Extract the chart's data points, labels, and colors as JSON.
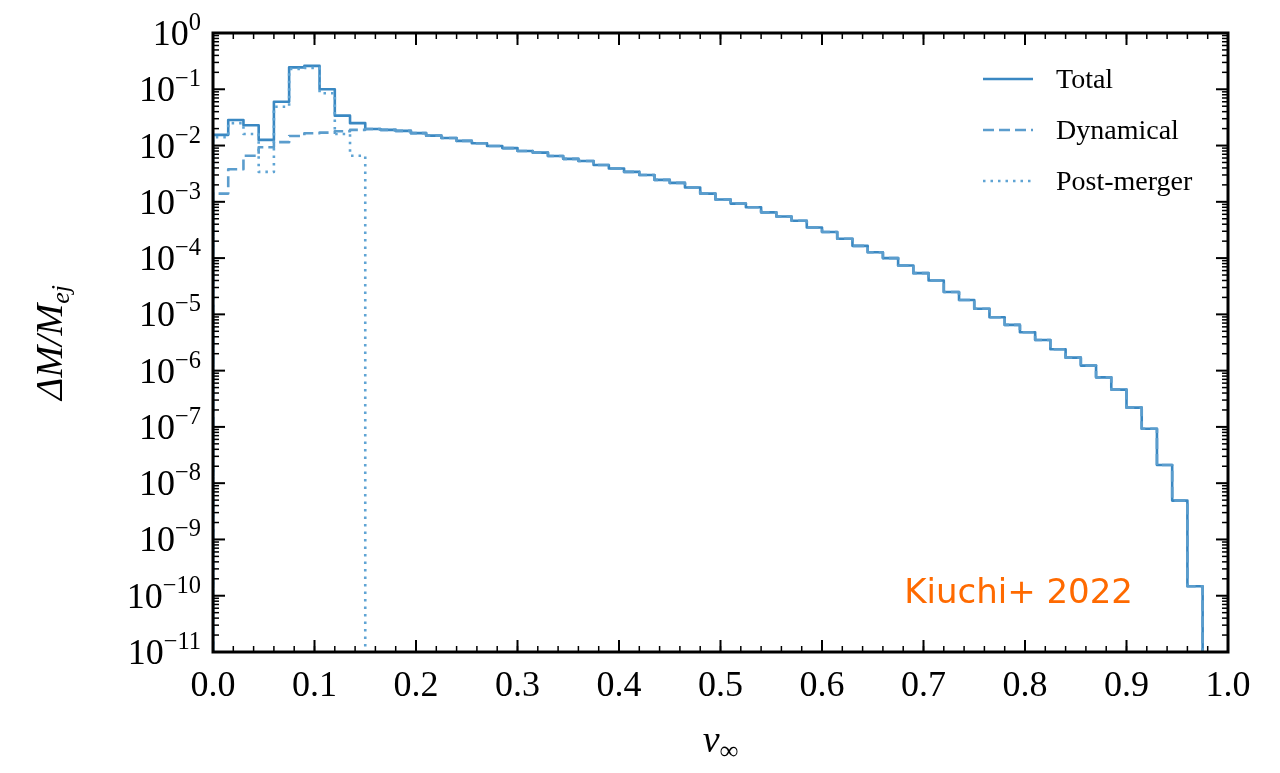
{
  "chart_data": {
    "type": "histogram",
    "xlabel": "v$_{∞}$",
    "ylabel": "ΔM/M$_{ej}$",
    "bins": [
      0,
      0.015,
      0.03,
      0.045,
      0.06,
      0.075,
      0.09,
      0.105,
      0.12,
      0.135,
      0.15,
      0.165,
      0.18,
      0.195,
      0.21,
      0.225,
      0.24,
      0.255,
      0.27,
      0.285,
      0.3,
      0.315,
      0.33,
      0.345,
      0.36,
      0.375,
      0.39,
      0.405,
      0.42,
      0.435,
      0.45,
      0.465,
      0.48,
      0.495,
      0.51,
      0.525,
      0.54,
      0.555,
      0.57,
      0.585,
      0.6,
      0.615,
      0.63,
      0.645,
      0.66,
      0.675,
      0.69,
      0.705,
      0.72,
      0.735,
      0.75,
      0.765,
      0.78,
      0.795,
      0.81,
      0.825,
      0.84,
      0.855,
      0.87,
      0.885,
      0.9,
      0.915,
      0.93,
      0.945,
      0.96,
      0.975
    ],
    "series": [
      {
        "name": "Total",
        "color": "#3a88c2",
        "line_style": "solid",
        "values": [
          0.0155,
          0.0285,
          0.023,
          0.0126,
          0.06,
          0.245,
          0.26,
          0.1,
          0.034,
          0.025,
          0.0197,
          0.019,
          0.0182,
          0.0166,
          0.015,
          0.0136,
          0.0121,
          0.011,
          0.0098,
          0.009,
          0.008,
          0.0075,
          0.0065,
          0.0058,
          0.0053,
          0.0045,
          0.0039,
          0.0034,
          0.003,
          0.00245,
          0.00217,
          0.0018,
          0.0014,
          0.0011,
          0.00093,
          0.0008,
          0.00065,
          0.00055,
          0.00046,
          0.00035,
          0.00029,
          0.00022,
          0.000165,
          0.000127,
          0.0001,
          7.4e-05,
          5.4e-05,
          4e-05,
          2.5e-05,
          1.8e-05,
          1.26e-05,
          8.9e-06,
          6.5e-06,
          4.8e-06,
          3.5e-06,
          2.4e-06,
          1.7e-06,
          1.23e-06,
          7.6e-07,
          4.6e-07,
          2.2e-07,
          9.3e-08,
          2.1e-08,
          4.9e-09,
          1.47e-10
        ]
      },
      {
        "name": "Dynamical",
        "color": "#5b9dcd",
        "line_style": "dashed",
        "values": [
          0.0014,
          0.0038,
          0.0066,
          0.0093,
          0.0115,
          0.0148,
          0.0165,
          0.017,
          0.018,
          0.019,
          0.0197,
          0.019,
          0.0182,
          0.0166,
          0.015,
          0.0136,
          0.0121,
          0.011,
          0.0098,
          0.009,
          0.008,
          0.0075,
          0.0065,
          0.0058,
          0.0053,
          0.0045,
          0.0039,
          0.0034,
          0.003,
          0.00245,
          0.00217,
          0.0018,
          0.0014,
          0.0011,
          0.00093,
          0.0008,
          0.00065,
          0.00055,
          0.00046,
          0.00035,
          0.00029,
          0.00022,
          0.000165,
          0.000127,
          0.0001,
          7.4e-05,
          5.4e-05,
          4e-05,
          2.5e-05,
          1.8e-05,
          1.26e-05,
          8.9e-06,
          6.5e-06,
          4.8e-06,
          3.5e-06,
          2.4e-06,
          1.7e-06,
          1.23e-06,
          7.6e-07,
          4.6e-07,
          2.2e-07,
          9.3e-08,
          2.1e-08,
          4.9e-09,
          1.47e-10
        ]
      },
      {
        "name": "Post-merger",
        "color": "#5fa4d4",
        "line_style": "dotted",
        "bins": [
          0,
          0.015,
          0.03,
          0.045,
          0.06,
          0.075,
          0.09,
          0.105,
          0.12,
          0.135,
          0.15
        ],
        "values": [
          0.014,
          0.025,
          0.016,
          0.0034,
          0.049,
          0.23,
          0.24,
          0.085,
          0.016,
          0.0066
        ]
      }
    ],
    "log": "y",
    "xlim": [
      0,
      1
    ],
    "xticks": [
      {
        "value": 0,
        "label": "0.0"
      },
      {
        "value": 0.1,
        "label": "0.1"
      },
      {
        "value": 0.2,
        "label": "0.2"
      },
      {
        "value": 0.3,
        "label": "0.3"
      },
      {
        "value": 0.4,
        "label": "0.4"
      },
      {
        "value": 0.5,
        "label": "0.5"
      },
      {
        "value": 0.6,
        "label": "0.6"
      },
      {
        "value": 0.7,
        "label": "0.7"
      },
      {
        "value": 0.8,
        "label": "0.8"
      },
      {
        "value": 0.9,
        "label": "0.9"
      },
      {
        "value": 1,
        "label": "1.0"
      }
    ],
    "ylim": [
      1e-11,
      1
    ],
    "yticks": [
      {
        "value": 1,
        "label": "10$^{0}$"
      },
      {
        "value": 0.1,
        "label": "10$^{−1}$"
      },
      {
        "value": 0.01,
        "label": "10$^{−2}$"
      },
      {
        "value": 0.001,
        "label": "10$^{−3}$"
      },
      {
        "value": 0.0001,
        "label": "10$^{−4}$"
      },
      {
        "value": 1e-05,
        "label": "10$^{−5}$"
      },
      {
        "value": 1e-06,
        "label": "10$^{−6}$"
      },
      {
        "value": 1e-07,
        "label": "10$^{−7}$"
      },
      {
        "value": 1e-08,
        "label": "10$^{−8}$"
      },
      {
        "value": 1e-09,
        "label": "10$^{−9}$"
      },
      {
        "value": 1e-10,
        "label": "10$^{−10}$"
      },
      {
        "value": 1e-11,
        "label": "10$^{−11}$"
      }
    ],
    "grid": false,
    "legend": "top right",
    "annotations": [
      "Kiuchi+ 2022"
    ]
  }
}
